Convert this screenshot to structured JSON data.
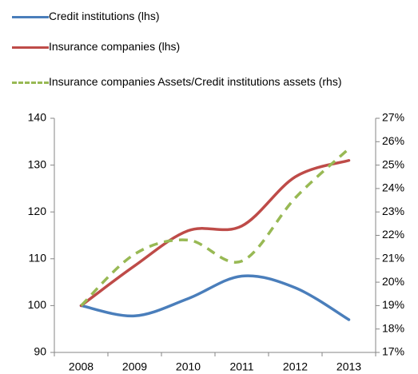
{
  "chart_data": {
    "type": "line",
    "categories": [
      "2008",
      "2009",
      "2010",
      "2011",
      "2012",
      "2013"
    ],
    "series": [
      {
        "name": "Credit institutions (lhs)",
        "color": "#4a7ebb",
        "values": [
          100,
          97.8,
          101.5,
          106.3,
          103.8,
          97
        ]
      },
      {
        "name": "Insurance companies (lhs)",
        "color": "#be4b48",
        "values": [
          100,
          108.5,
          116,
          117,
          127.5,
          131
        ]
      },
      {
        "name": "Insurance companies Assets/Credit institutions assets (rhs)",
        "color": "#98b954",
        "dashed": true,
        "axis": "y2",
        "values": [
          19,
          21.2,
          21.8,
          20.9,
          23.6,
          25.7
        ]
      }
    ],
    "ylim": [
      90,
      140
    ],
    "yticks": [
      90,
      100,
      110,
      120,
      130,
      140
    ],
    "y2lim": [
      17,
      27
    ],
    "y2ticks": [
      {
        "value": 17,
        "label": "17%"
      },
      {
        "value": 18,
        "label": "18%"
      },
      {
        "value": 19,
        "label": "19%"
      },
      {
        "value": 20,
        "label": "20%"
      },
      {
        "value": 21,
        "label": "21%"
      },
      {
        "value": 22,
        "label": "22%"
      },
      {
        "value": 23,
        "label": "23%"
      },
      {
        "value": 24,
        "label": "24%"
      },
      {
        "value": 25,
        "label": "25%"
      },
      {
        "value": 26,
        "label": "26%"
      },
      {
        "value": 27,
        "label": "27%"
      }
    ],
    "grid": false,
    "smooth": true
  }
}
